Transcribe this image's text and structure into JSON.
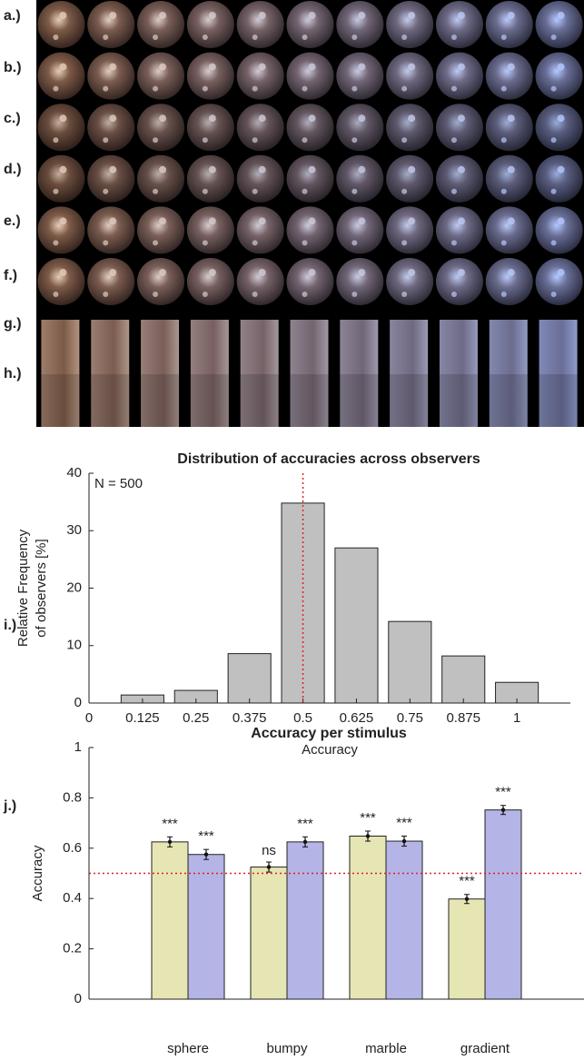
{
  "panels": {
    "labels": [
      "a.)",
      "b.)",
      "c.)",
      "d.)",
      "e.)",
      "f.)",
      "g.)",
      "h.)",
      "i.)",
      "j.)"
    ]
  },
  "chart_data": [
    {
      "type": "bar",
      "title": "Distribution of accuracies across observers",
      "annotation": "N = 500",
      "xlabel": "Accuracy",
      "ylabel": [
        "Relative Frequency",
        "of observers [%]"
      ],
      "x": [
        0.125,
        0.25,
        0.375,
        0.5,
        0.625,
        0.75,
        0.875,
        1
      ],
      "values": [
        1.4,
        2.2,
        8.6,
        34.8,
        27,
        14.2,
        8.2,
        3.6
      ],
      "color": "#c0c0c0",
      "xlim": [
        0,
        1.125
      ],
      "ylim": [
        0,
        40
      ],
      "xticks": [
        0,
        0.125,
        0.25,
        0.375,
        0.5,
        0.625,
        0.75,
        0.875,
        1
      ],
      "yticks": [
        0,
        10,
        20,
        30,
        40
      ],
      "reference_x": 0.5,
      "reference_color": "#e02020"
    },
    {
      "type": "grouped_bar",
      "title": "Accuracy per stimulus",
      "ylabel": "Accuracy",
      "categories": [
        "sphere",
        "bumpy",
        "marble",
        "gradient"
      ],
      "series": [
        {
          "color": "#e6e6b4",
          "values": [
            0.625,
            0.525,
            0.648,
            0.398
          ],
          "errors": [
            0.02,
            0.02,
            0.02,
            0.018
          ],
          "significance": [
            "***",
            "ns",
            "***",
            "***"
          ]
        },
        {
          "color": "#b4b4e6",
          "values": [
            0.575,
            0.625,
            0.628,
            0.752
          ],
          "errors": [
            0.02,
            0.02,
            0.02,
            0.018
          ],
          "significance": [
            "***",
            "***",
            "***",
            "***"
          ]
        }
      ],
      "ylim": [
        0,
        1
      ],
      "yticks": [
        0,
        0.2,
        0.4,
        0.6,
        0.8,
        1
      ],
      "reference_y": 0.5,
      "reference_color": "#e02020"
    }
  ]
}
